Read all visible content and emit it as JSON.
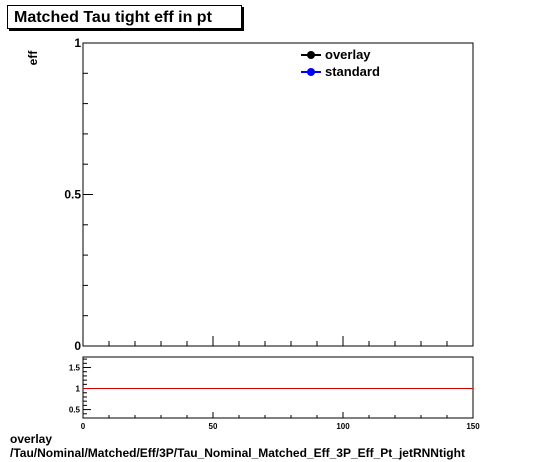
{
  "title": "Matched Tau tight eff in pt",
  "footer": {
    "line1": "overlay",
    "line2": "/Tau/Nominal/Matched/Eff/3P/Tau_Nominal_Matched_Eff_3P_Eff_Pt_jetRNNtight"
  },
  "legend": [
    {
      "label": "overlay",
      "color": "#000000"
    },
    {
      "label": "standard",
      "color": "#0000ff"
    }
  ],
  "chart_data": [
    {
      "type": "line",
      "title": "Matched Tau tight eff in pt",
      "ylabel": "eff",
      "xlabel": "",
      "xlim": [
        0,
        150
      ],
      "ylim": [
        0,
        1
      ],
      "y_ticks": [
        "0",
        "0.5",
        "1"
      ],
      "series": [
        {
          "name": "overlay",
          "color": "#000000",
          "x": [],
          "y": []
        },
        {
          "name": "standard",
          "color": "#0000ff",
          "x": [],
          "y": []
        }
      ],
      "legend_position": "top-right",
      "grid": false
    },
    {
      "type": "line",
      "title": "",
      "xlim": [
        0,
        150
      ],
      "ylim": [
        0.3,
        1.75
      ],
      "x_ticks": [
        "0",
        "50",
        "100",
        "150"
      ],
      "y_ticks": [
        "0.5",
        "1",
        "1.5"
      ],
      "reference_line": {
        "y": 1,
        "color": "#cc0000"
      },
      "grid": false
    }
  ]
}
